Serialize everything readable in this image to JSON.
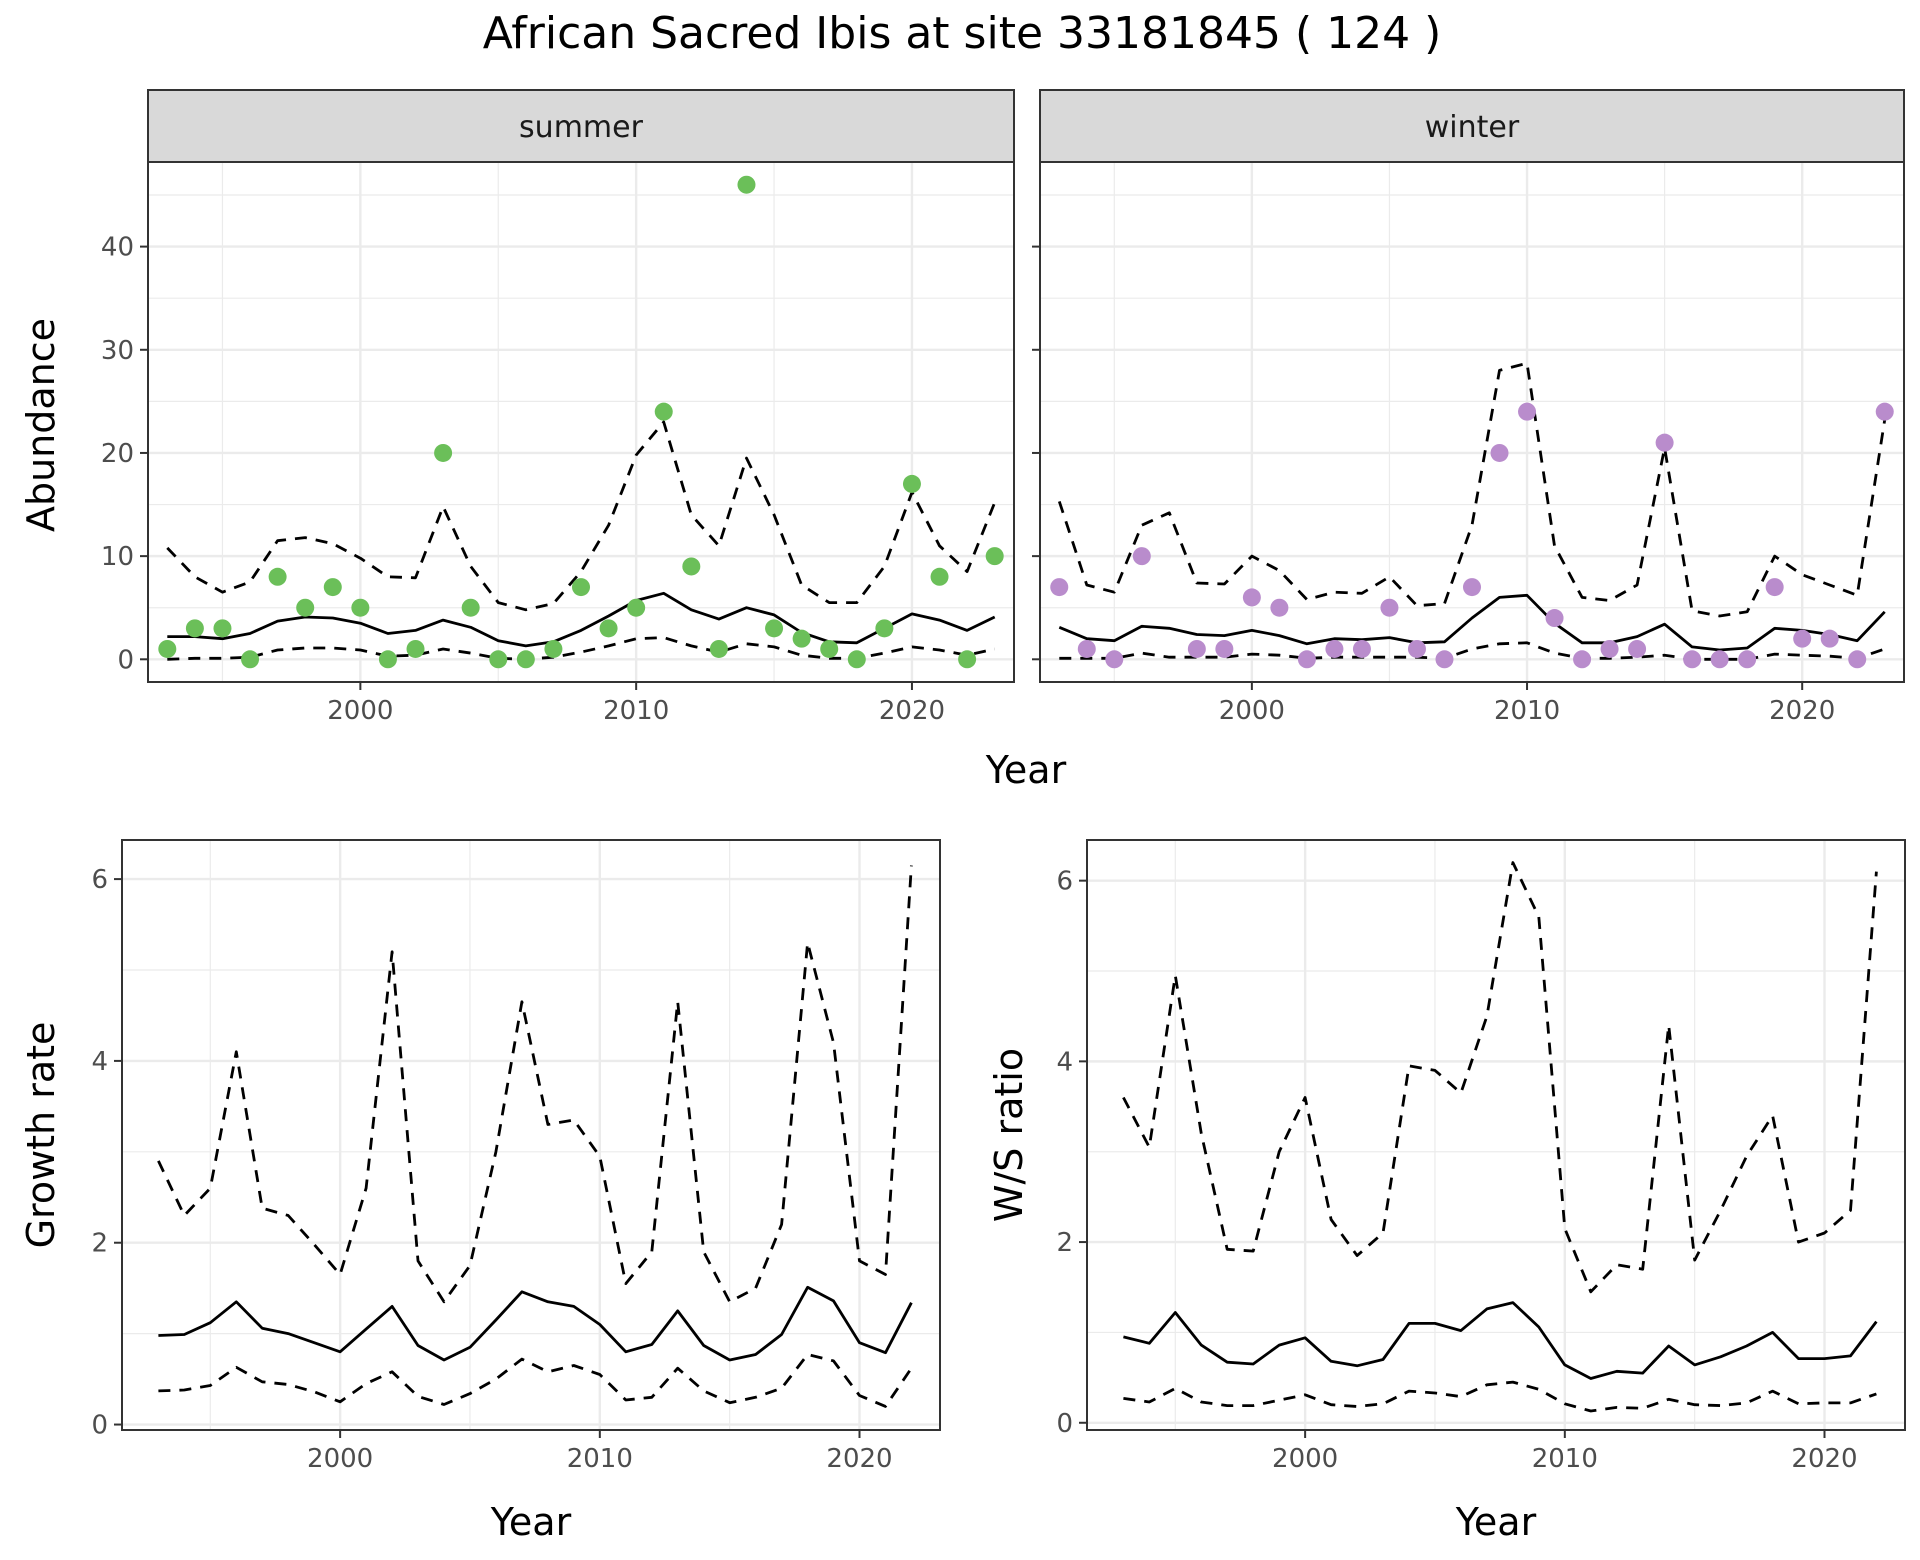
{
  "title": "African Sacred Ibis at site 33181845 ( 124 )",
  "colors": {
    "summer_points": "#6bbf59",
    "winter_points": "#b98ccc",
    "line": "#000000",
    "strip_bg": "#d9d9d9",
    "grid": "#ebebeb",
    "panel_border": "#333333"
  },
  "chart_data": [
    {
      "type": "scatter",
      "facet": "summer",
      "xlabel": "Year",
      "ylabel": "Abundance",
      "xlim": [
        1992.3,
        2023.7
      ],
      "ylim": [
        -2.2,
        48.2
      ],
      "x_ticks": [
        2000,
        2010,
        2020
      ],
      "y_ticks": [
        0,
        10,
        20,
        30,
        40
      ],
      "points": {
        "x": [
          1993,
          1994,
          1995,
          1996,
          1997,
          1998,
          1999,
          2000,
          2001,
          2002,
          2003,
          2004,
          2005,
          2006,
          2007,
          2008,
          2009,
          2010,
          2011,
          2012,
          2013,
          2014,
          2015,
          2016,
          2017,
          2018,
          2019,
          2020,
          2021,
          2022,
          2023
        ],
        "y": [
          1,
          3,
          3,
          0,
          8,
          5,
          7,
          5,
          0,
          1,
          20,
          5,
          0,
          0,
          1,
          7,
          3,
          5,
          24,
          9,
          1,
          46,
          3,
          2,
          1,
          0,
          3,
          17,
          8,
          0,
          10
        ]
      },
      "series": [
        {
          "role": "mean",
          "dash": "solid",
          "x": [
            1993,
            1994,
            1995,
            1996,
            1997,
            1998,
            1999,
            2000,
            2001,
            2002,
            2003,
            2004,
            2005,
            2006,
            2007,
            2008,
            2009,
            2010,
            2011,
            2012,
            2013,
            2014,
            2015,
            2016,
            2017,
            2018,
            2019,
            2020,
            2021,
            2022,
            2023
          ],
          "y": [
            2.2,
            2.2,
            2.0,
            2.5,
            3.7,
            4.1,
            4.0,
            3.5,
            2.5,
            2.8,
            3.8,
            3.1,
            1.8,
            1.3,
            1.7,
            2.8,
            4.2,
            5.7,
            6.4,
            4.8,
            3.9,
            5.0,
            4.3,
            2.6,
            1.7,
            1.6,
            3.0,
            4.4,
            3.8,
            2.8,
            4.1
          ]
        },
        {
          "role": "upper",
          "dash": "dashed",
          "x": [
            1993,
            1994,
            1995,
            1996,
            1997,
            1998,
            1999,
            2000,
            2001,
            2002,
            2003,
            2004,
            2005,
            2006,
            2007,
            2008,
            2009,
            2010,
            2011,
            2012,
            2013,
            2014,
            2015,
            2016,
            2017,
            2018,
            2019,
            2020,
            2021,
            2022,
            2023
          ],
          "y": [
            10.8,
            8.0,
            6.5,
            7.5,
            11.5,
            11.8,
            11.2,
            9.8,
            8.0,
            7.9,
            14.8,
            9.0,
            5.5,
            4.8,
            5.4,
            8.5,
            13.0,
            19.8,
            23.0,
            14.0,
            11.0,
            19.5,
            14.0,
            7.2,
            5.5,
            5.5,
            9.0,
            16.2,
            11.0,
            8.5,
            15.2
          ]
        },
        {
          "role": "lower",
          "dash": "dashed",
          "x": [
            1993,
            1994,
            1995,
            1996,
            1997,
            1998,
            1999,
            2000,
            2001,
            2002,
            2003,
            2004,
            2005,
            2006,
            2007,
            2008,
            2009,
            2010,
            2011,
            2012,
            2013,
            2014,
            2015,
            2016,
            2017,
            2018,
            2019,
            2020,
            2021,
            2022,
            2023
          ],
          "y": [
            0.0,
            0.1,
            0.1,
            0.2,
            0.9,
            1.1,
            1.1,
            0.9,
            0.3,
            0.4,
            1.0,
            0.6,
            0.1,
            0.0,
            0.2,
            0.7,
            1.3,
            2.0,
            2.1,
            1.3,
            0.7,
            1.5,
            1.2,
            0.4,
            0.1,
            0.1,
            0.6,
            1.2,
            0.9,
            0.4,
            1.0
          ]
        }
      ]
    },
    {
      "type": "scatter",
      "facet": "winter",
      "xlabel": "Year",
      "ylabel": "Abundance",
      "xlim": [
        1992.3,
        2023.7
      ],
      "ylim": [
        -2.2,
        48.2
      ],
      "x_ticks": [
        2000,
        2010,
        2020
      ],
      "y_ticks": [
        0,
        10,
        20,
        30,
        40
      ],
      "points": {
        "x": [
          1993,
          1994,
          1995,
          1996,
          1997,
          1998,
          1999,
          2000,
          2001,
          2002,
          2003,
          2004,
          2005,
          2006,
          2007,
          2008,
          2009,
          2010,
          2011,
          2012,
          2013,
          2014,
          2015,
          2016,
          2017,
          2018,
          2019,
          2020,
          2021,
          2022,
          2023
        ],
        "y": [
          7,
          1,
          0,
          10,
          null,
          1,
          1,
          6,
          5,
          0,
          1,
          1,
          5,
          1,
          0,
          7,
          20,
          24,
          4,
          0,
          1,
          1,
          21,
          0,
          0,
          0,
          7,
          2,
          2,
          0,
          24
        ]
      },
      "series": [
        {
          "role": "mean",
          "dash": "solid",
          "x": [
            1993,
            1994,
            1995,
            1996,
            1997,
            1998,
            1999,
            2000,
            2001,
            2002,
            2003,
            2004,
            2005,
            2006,
            2007,
            2008,
            2009,
            2010,
            2011,
            2012,
            2013,
            2014,
            2015,
            2016,
            2017,
            2018,
            2019,
            2020,
            2021,
            2022,
            2023
          ],
          "y": [
            3.1,
            2.0,
            1.8,
            3.2,
            3.0,
            2.4,
            2.3,
            2.8,
            2.3,
            1.5,
            2.0,
            1.9,
            2.1,
            1.6,
            1.7,
            4.0,
            6.0,
            6.2,
            3.5,
            1.6,
            1.6,
            2.2,
            3.4,
            1.2,
            0.9,
            1.1,
            3.0,
            2.8,
            2.4,
            1.8,
            4.6
          ]
        },
        {
          "role": "upper",
          "dash": "dashed",
          "x": [
            1993,
            1994,
            1995,
            1996,
            1997,
            1998,
            1999,
            2000,
            2001,
            2002,
            2003,
            2004,
            2005,
            2006,
            2007,
            2008,
            2009,
            2010,
            2011,
            2012,
            2013,
            2014,
            2015,
            2016,
            2017,
            2018,
            2019,
            2020,
            2021,
            2022,
            2023
          ],
          "y": [
            15.3,
            7.2,
            6.5,
            13.0,
            14.2,
            7.4,
            7.3,
            10.0,
            8.6,
            5.8,
            6.5,
            6.4,
            8.0,
            5.2,
            5.4,
            13.0,
            28.0,
            28.7,
            11.0,
            6.0,
            5.7,
            7.2,
            20.5,
            4.7,
            4.2,
            4.6,
            10.0,
            8.2,
            7.2,
            6.2,
            23.2
          ]
        },
        {
          "role": "lower",
          "dash": "dashed",
          "x": [
            1993,
            1994,
            1995,
            1996,
            1997,
            1998,
            1999,
            2000,
            2001,
            2002,
            2003,
            2004,
            2005,
            2006,
            2007,
            2008,
            2009,
            2010,
            2011,
            2012,
            2013,
            2014,
            2015,
            2016,
            2017,
            2018,
            2019,
            2020,
            2021,
            2022,
            2023
          ],
          "y": [
            0.1,
            0.1,
            0.1,
            0.6,
            0.2,
            0.2,
            0.2,
            0.5,
            0.4,
            0.1,
            0.2,
            0.2,
            0.2,
            0.2,
            0.1,
            1.0,
            1.5,
            1.6,
            0.6,
            0.1,
            0.1,
            0.2,
            0.4,
            0.0,
            0.0,
            0.0,
            0.5,
            0.4,
            0.3,
            0.1,
            1.0
          ]
        }
      ]
    },
    {
      "type": "line",
      "xlabel": "Year",
      "ylabel": "Growth rate",
      "xlim": [
        1991.6,
        2023.1
      ],
      "ylim": [
        -0.06,
        6.43
      ],
      "x_ticks": [
        2000,
        2010,
        2020
      ],
      "y_ticks": [
        0,
        2,
        4,
        6
      ],
      "series": [
        {
          "role": "mean",
          "dash": "solid",
          "x": [
            1993,
            1994,
            1995,
            1996,
            1997,
            1998,
            1999,
            2000,
            2001,
            2002,
            2003,
            2004,
            2005,
            2006,
            2007,
            2008,
            2009,
            2010,
            2011,
            2012,
            2013,
            2014,
            2015,
            2016,
            2017,
            2018,
            2019,
            2020,
            2021,
            2022
          ],
          "y": [
            0.98,
            0.99,
            1.12,
            1.35,
            1.06,
            1.0,
            0.9,
            0.8,
            1.05,
            1.3,
            0.87,
            0.71,
            0.85,
            1.15,
            1.46,
            1.35,
            1.3,
            1.1,
            0.8,
            0.88,
            1.25,
            0.87,
            0.71,
            0.77,
            0.99,
            1.51,
            1.36,
            0.9,
            0.79,
            1.34
          ]
        },
        {
          "role": "upper",
          "dash": "dashed",
          "x": [
            1993,
            1994,
            1995,
            1996,
            1997,
            1998,
            1999,
            2000,
            2001,
            2002,
            2003,
            2004,
            2005,
            2006,
            2007,
            2008,
            2009,
            2010,
            2011,
            2012,
            2013,
            2014,
            2015,
            2016,
            2017,
            2018,
            2019,
            2020,
            2021,
            2022
          ],
          "y": [
            2.9,
            2.3,
            2.6,
            4.1,
            2.38,
            2.3,
            1.98,
            1.65,
            2.6,
            5.2,
            1.8,
            1.35,
            1.75,
            3.0,
            4.65,
            3.3,
            3.35,
            2.95,
            1.55,
            1.9,
            4.65,
            1.9,
            1.35,
            1.5,
            2.2,
            5.3,
            4.2,
            1.8,
            1.65,
            6.15
          ]
        },
        {
          "role": "lower",
          "dash": "dashed",
          "x": [
            1993,
            1994,
            1995,
            1996,
            1997,
            1998,
            1999,
            2000,
            2001,
            2002,
            2003,
            2004,
            2005,
            2006,
            2007,
            2008,
            2009,
            2010,
            2011,
            2012,
            2013,
            2014,
            2015,
            2016,
            2017,
            2018,
            2019,
            2020,
            2021,
            2022
          ],
          "y": [
            0.37,
            0.38,
            0.43,
            0.63,
            0.47,
            0.44,
            0.36,
            0.25,
            0.45,
            0.58,
            0.31,
            0.22,
            0.34,
            0.5,
            0.72,
            0.58,
            0.65,
            0.55,
            0.27,
            0.3,
            0.62,
            0.37,
            0.24,
            0.3,
            0.4,
            0.77,
            0.7,
            0.32,
            0.2,
            0.62
          ]
        }
      ]
    },
    {
      "type": "line",
      "xlabel": "Year",
      "ylabel": "W/S ratio",
      "xlim": [
        1991.6,
        2023.1
      ],
      "ylim": [
        -0.08,
        6.45
      ],
      "x_ticks": [
        2000,
        2010,
        2020
      ],
      "y_ticks": [
        0,
        2,
        4,
        6
      ],
      "series": [
        {
          "role": "mean",
          "dash": "solid",
          "x": [
            1993,
            1994,
            1995,
            1996,
            1997,
            1998,
            1999,
            2000,
            2001,
            2002,
            2003,
            2004,
            2005,
            2006,
            2007,
            2008,
            2009,
            2010,
            2011,
            2012,
            2013,
            2014,
            2015,
            2016,
            2017,
            2018,
            2019,
            2020,
            2021,
            2022
          ],
          "y": [
            0.95,
            0.88,
            1.22,
            0.86,
            0.67,
            0.65,
            0.86,
            0.94,
            0.68,
            0.63,
            0.7,
            1.1,
            1.1,
            1.02,
            1.26,
            1.33,
            1.06,
            0.64,
            0.49,
            0.57,
            0.55,
            0.85,
            0.64,
            0.73,
            0.85,
            1.0,
            0.71,
            0.71,
            0.74,
            1.12
          ]
        },
        {
          "role": "upper",
          "dash": "dashed",
          "x": [
            1993,
            1994,
            1995,
            1996,
            1997,
            1998,
            1999,
            2000,
            2001,
            2002,
            2003,
            2004,
            2005,
            2006,
            2007,
            2008,
            2009,
            2010,
            2011,
            2012,
            2013,
            2014,
            2015,
            2016,
            2017,
            2018,
            2019,
            2020,
            2021,
            2022
          ],
          "y": [
            3.6,
            3.05,
            4.95,
            3.2,
            1.92,
            1.9,
            3.0,
            3.6,
            2.25,
            1.85,
            2.1,
            3.95,
            3.9,
            3.65,
            4.5,
            6.2,
            5.6,
            2.15,
            1.45,
            1.75,
            1.7,
            4.4,
            1.8,
            2.35,
            2.95,
            3.4,
            2.0,
            2.1,
            2.35,
            6.1
          ]
        },
        {
          "role": "lower",
          "dash": "dashed",
          "x": [
            1993,
            1994,
            1995,
            1996,
            1997,
            1998,
            1999,
            2000,
            2001,
            2002,
            2003,
            2004,
            2005,
            2006,
            2007,
            2008,
            2009,
            2010,
            2011,
            2012,
            2013,
            2014,
            2015,
            2016,
            2017,
            2018,
            2019,
            2020,
            2021,
            2022
          ],
          "y": [
            0.27,
            0.23,
            0.38,
            0.23,
            0.19,
            0.19,
            0.25,
            0.31,
            0.2,
            0.18,
            0.21,
            0.35,
            0.33,
            0.29,
            0.42,
            0.45,
            0.37,
            0.21,
            0.13,
            0.17,
            0.16,
            0.26,
            0.2,
            0.19,
            0.22,
            0.35,
            0.21,
            0.22,
            0.22,
            0.32
          ]
        }
      ]
    }
  ]
}
